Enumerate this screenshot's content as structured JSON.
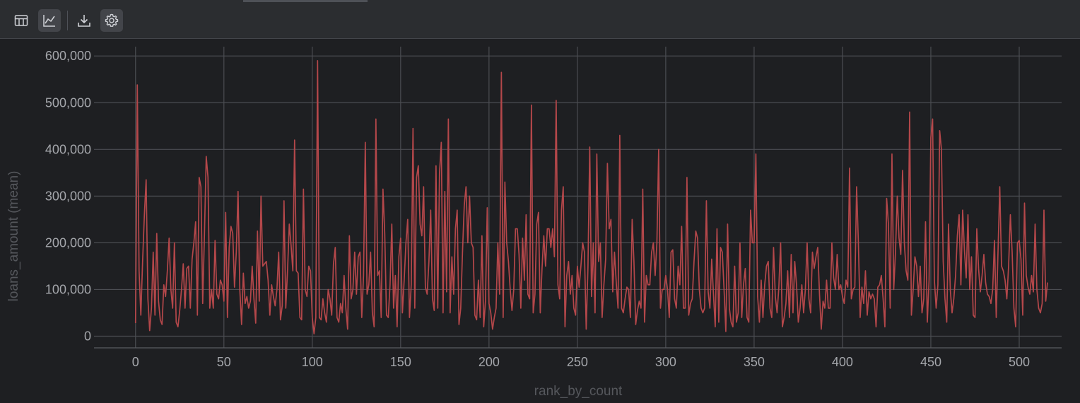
{
  "toolbar": {
    "buttons": [
      {
        "name": "table-view-button",
        "icon": "table-icon",
        "active": false
      },
      {
        "name": "chart-view-button",
        "icon": "line-chart-icon",
        "active": true
      },
      {
        "name": "download-button",
        "icon": "download-icon",
        "active": false
      },
      {
        "name": "settings-button",
        "icon": "gear-icon",
        "active": true
      }
    ]
  },
  "chart_data": {
    "type": "line",
    "xlabel": "rank_by_count",
    "ylabel": "loans_amount (mean)",
    "xlim": [
      -23.5,
      524
    ],
    "ylim": [
      -25000,
      620000
    ],
    "xticks": [
      0,
      50,
      100,
      150,
      200,
      250,
      300,
      350,
      400,
      450,
      500
    ],
    "xtick_labels": [
      "0",
      "50",
      "100",
      "150",
      "200",
      "250",
      "300",
      "350",
      "400",
      "450",
      "500"
    ],
    "yticks": [
      0,
      100000,
      200000,
      300000,
      400000,
      500000,
      600000
    ],
    "ytick_labels": [
      "0",
      "100,000",
      "200,000",
      "300,000",
      "400,000",
      "500,000",
      "600,000"
    ],
    "grid": true,
    "line_color": "#b4474a",
    "series": [
      {
        "values": [
          28000,
          538000,
          140000,
          45000,
          160000,
          260000,
          335000,
          80000,
          12000,
          60000,
          180000,
          45000,
          220000,
          75000,
          35000,
          25000,
          110000,
          85000,
          140000,
          210000,
          100000,
          60000,
          200000,
          30000,
          20000,
          55000,
          100000,
          155000,
          60000,
          145000,
          150000,
          60000,
          165000,
          200000,
          245000,
          45000,
          340000,
          320000,
          70000,
          220000,
          385000,
          340000,
          60000,
          100000,
          60000,
          205000,
          90000,
          80000,
          120000,
          110000,
          75000,
          265000,
          40000,
          190000,
          235000,
          220000,
          105000,
          180000,
          310000,
          100000,
          25000,
          135000,
          70000,
          85000,
          60000,
          75000,
          150000,
          80000,
          28000,
          225000,
          75000,
          300000,
          150000,
          155000,
          160000,
          120000,
          45000,
          110000,
          85000,
          65000,
          100000,
          180000,
          35000,
          65000,
          290000,
          60000,
          140000,
          240000,
          195000,
          140000,
          420000,
          140000,
          135000,
          40000,
          35000,
          315000,
          100000,
          85000,
          150000,
          140000,
          40000,
          5000,
          40000,
          590000,
          40000,
          35000,
          80000,
          50000,
          30000,
          100000,
          80000,
          45000,
          155000,
          190000,
          40000,
          30000,
          70000,
          50000,
          130000,
          60000,
          15000,
          215000,
          80000,
          100000,
          180000,
          90000,
          170000,
          180000,
          40000,
          130000,
          415000,
          90000,
          110000,
          180000,
          50000,
          20000,
          465000,
          130000,
          140000,
          40000,
          315000,
          220000,
          45000,
          40000,
          110000,
          240000,
          60000,
          130000,
          20000,
          170000,
          210000,
          50000,
          120000,
          200000,
          250000,
          40000,
          110000,
          445000,
          60000,
          340000,
          365000,
          240000,
          215000,
          320000,
          105000,
          90000,
          160000,
          270000,
          80000,
          55000,
          365000,
          60000,
          350000,
          415000,
          50000,
          310000,
          95000,
          465000,
          50000,
          170000,
          90000,
          230000,
          270000,
          25000,
          60000,
          180000,
          280000,
          320000,
          200000,
          300000,
          200000,
          190000,
          45000,
          35000,
          120000,
          40000,
          215000,
          20000,
          75000,
          275000,
          70000,
          50000,
          15000,
          40000,
          60000,
          200000,
          90000,
          565000,
          40000,
          330000,
          200000,
          160000,
          100000,
          55000,
          100000,
          230000,
          230000,
          175000,
          60000,
          210000,
          120000,
          260000,
          90000,
          80000,
          495000,
          50000,
          90000,
          240000,
          265000,
          50000,
          145000,
          215000,
          150000,
          230000,
          230000,
          190000,
          230000,
          170000,
          505000,
          110000,
          80000,
          270000,
          320000,
          20000,
          130000,
          160000,
          90000,
          130000,
          60000,
          45000,
          150000,
          105000,
          150000,
          200000,
          180000,
          15000,
          150000,
          405000,
          85000,
          200000,
          50000,
          390000,
          160000,
          200000,
          40000,
          110000,
          165000,
          370000,
          230000,
          250000,
          95000,
          180000,
          115000,
          60000,
          430000,
          60000,
          50000,
          80000,
          105000,
          100000,
          40000,
          250000,
          160000,
          25000,
          55000,
          75000,
          60000,
          315000,
          30000,
          130000,
          110000,
          110000,
          180000,
          200000,
          130000,
          200000,
          400000,
          60000,
          100000,
          100000,
          130000,
          100000,
          40000,
          180000,
          185000,
          80000,
          60000,
          150000,
          110000,
          235000,
          60000,
          60000,
          340000,
          45000,
          70000,
          80000,
          160000,
          225000,
          210000,
          100000,
          60000,
          50000,
          60000,
          290000,
          95000,
          60000,
          165000,
          90000,
          20000,
          230000,
          30000,
          190000,
          180000,
          100000,
          10000,
          240000,
          60000,
          30000,
          20000,
          150000,
          30000,
          50000,
          200000,
          40000,
          110000,
          145000,
          40000,
          30000,
          270000,
          200000,
          200000,
          390000,
          85000,
          30000,
          120000,
          40000,
          110000,
          150000,
          160000,
          60000,
          40000,
          190000,
          85000,
          50000,
          105000,
          200000,
          20000,
          40000,
          70000,
          140000,
          40000,
          175000,
          50000,
          160000,
          110000,
          30000,
          60000,
          110000,
          50000,
          100000,
          200000,
          80000,
          50000,
          180000,
          145000,
          170000,
          190000,
          90000,
          15000,
          75000,
          60000,
          120000,
          60000,
          60000,
          200000,
          125000,
          100000,
          175000,
          100000,
          110000,
          85000,
          70000,
          120000,
          105000,
          360000,
          80000,
          100000,
          105000,
          320000,
          200000,
          40000,
          105000,
          70000,
          140000,
          45000,
          95000,
          80000,
          90000,
          80000,
          20000,
          105000,
          110000,
          130000,
          80000,
          20000,
          295000,
          240000,
          60000,
          390000,
          100000,
          180000,
          300000,
          210000,
          175000,
          355000,
          200000,
          140000,
          120000,
          480000,
          45000,
          100000,
          170000,
          150000,
          85000,
          150000,
          50000,
          80000,
          245000,
          30000,
          120000,
          425000,
          465000,
          120000,
          60000,
          110000,
          440000,
          400000,
          160000,
          80000,
          30000,
          240000,
          100000,
          50000,
          80000,
          130000,
          215000,
          260000,
          110000,
          270000,
          185000,
          125000,
          260000,
          100000,
          170000,
          45000,
          40000,
          230000,
          145000,
          95000,
          130000,
          175000,
          115000,
          90000,
          85000,
          70000,
          100000,
          205000,
          40000,
          180000,
          320000,
          150000,
          140000,
          120000,
          80000,
          150000,
          260000,
          180000,
          60000,
          20000,
          200000,
          205000,
          165000,
          45000,
          285000,
          130000,
          105000,
          90000,
          130000,
          95000,
          240000,
          100000,
          60000,
          50000,
          70000,
          270000,
          75000,
          115000
        ]
      }
    ]
  }
}
